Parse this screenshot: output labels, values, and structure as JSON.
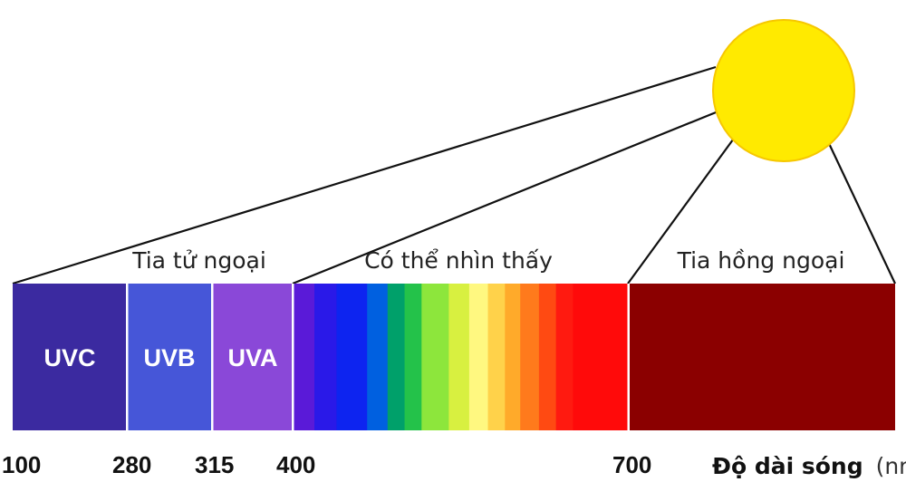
{
  "sun": {
    "color": "#ffea00",
    "outline": "#f6c700"
  },
  "regions": {
    "ultraviolet": "Tia tử ngoại",
    "visible": "Có thể nhìn thấy",
    "infrared": "Tia hồng ngoại"
  },
  "uv_bands": [
    {
      "label": "UVC",
      "color": "#3b2aa0"
    },
    {
      "label": "UVB",
      "color": "#4656d8"
    },
    {
      "label": "UVA",
      "color": "#8a48d8"
    }
  ],
  "visible_colors": [
    "#5a1ad8",
    "#2a19e8",
    "#0d24f0",
    "#0060e0",
    "#00a06a",
    "#24c24a",
    "#8de63c",
    "#d8f040",
    "#fff880",
    "#ffd24a",
    "#ffaa2a",
    "#ff7a1c",
    "#ff4a12",
    "#ff1a10",
    "#ff0a0a"
  ],
  "infrared_color": "#8b0000",
  "axis": {
    "ticks": [
      "100",
      "280",
      "315",
      "400",
      "700"
    ],
    "title": "Độ dài sóng",
    "unit": "(nm)"
  }
}
